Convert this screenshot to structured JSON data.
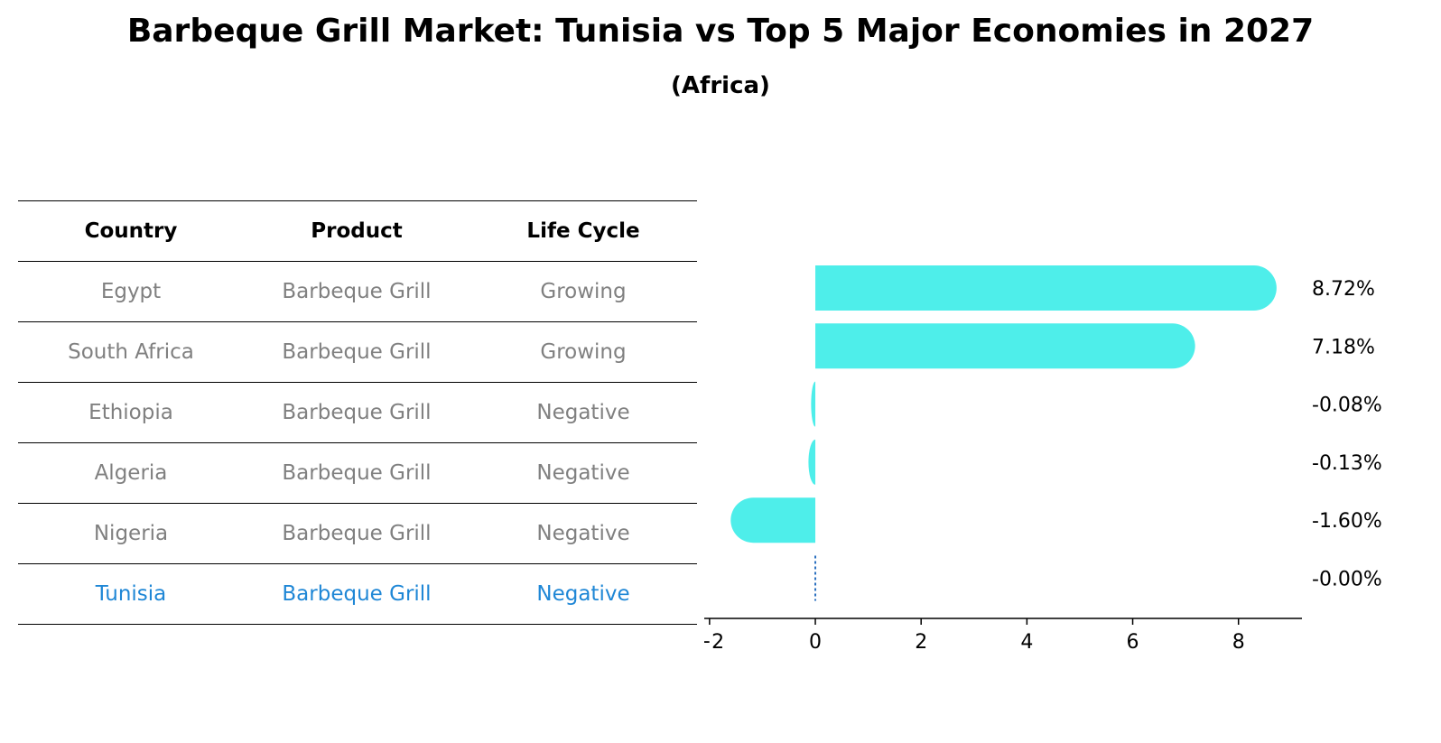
{
  "title": "Barbeque Grill Market: Tunisia vs Top 5 Major Economies in 2027",
  "subtitle": "(Africa)",
  "table": {
    "headers": [
      "Country",
      "Product",
      "Life Cycle"
    ],
    "rows": [
      {
        "country": "Egypt",
        "product": "Barbeque Grill",
        "life_cycle": "Growing"
      },
      {
        "country": "South Africa",
        "product": "Barbeque Grill",
        "life_cycle": "Growing"
      },
      {
        "country": "Ethiopia",
        "product": "Barbeque Grill",
        "life_cycle": "Negative"
      },
      {
        "country": "Algeria",
        "product": "Barbeque Grill",
        "life_cycle": "Negative"
      },
      {
        "country": "Nigeria",
        "product": "Barbeque Grill",
        "life_cycle": "Negative"
      },
      {
        "country": "Tunisia",
        "product": "Barbeque Grill",
        "life_cycle": "Negative"
      }
    ]
  },
  "colors": {
    "bar": "#4eeeea",
    "highlight_text": "#1f87d6",
    "muted_text": "#808080",
    "zero_marker": "#2a6fbf"
  },
  "chart_data": {
    "type": "bar",
    "orientation": "horizontal",
    "categories": [
      "Egypt",
      "South Africa",
      "Ethiopia",
      "Algeria",
      "Nigeria",
      "Tunisia"
    ],
    "values": [
      8.72,
      7.18,
      -0.08,
      -0.13,
      -1.6,
      -0.0
    ],
    "value_labels": [
      "8.72%",
      "7.18%",
      "-0.08%",
      "-0.13%",
      "-1.60%",
      "-0.00%"
    ],
    "xlim": [
      -2.1,
      9.2
    ],
    "xticks": [
      -2,
      0,
      2,
      4,
      6,
      8
    ],
    "xtick_labels": [
      "−2",
      "0",
      "2",
      "4",
      "6",
      "8"
    ],
    "grid": false
  }
}
